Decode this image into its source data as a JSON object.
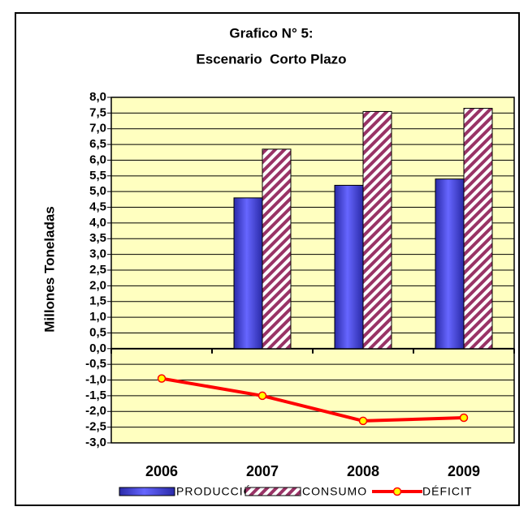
{
  "chart_data": {
    "type": "bar",
    "title": "Grafico N° 5:",
    "subtitle": "Escenario  Corto Plazo",
    "y_label": "Millones Toneladas",
    "categories": [
      "2006",
      "2007",
      "2008",
      "2009"
    ],
    "series": [
      {
        "name": "PRODUCCIÓN",
        "type": "bar",
        "color": "#6666ff",
        "values": [
          null,
          4.8,
          5.2,
          5.4
        ]
      },
      {
        "name": "CONSUMO",
        "type": "bar",
        "color": "#993366",
        "values": [
          null,
          6.35,
          7.55,
          7.65
        ]
      },
      {
        "name": "DÉFICIT",
        "type": "line",
        "color": "#ff0000",
        "marker_color": "#ffff00",
        "values": [
          -0.95,
          -1.5,
          -2.3,
          -2.2
        ]
      }
    ],
    "ylim": [
      -3,
      8
    ],
    "yticks": [
      {
        "value": -3,
        "label": "-3,0"
      },
      {
        "value": -2.5,
        "label": "-2,5"
      },
      {
        "value": -2,
        "label": "-2,0"
      },
      {
        "value": -1.5,
        "label": "-1,5"
      },
      {
        "value": -1,
        "label": "-1,0"
      },
      {
        "value": -0.5,
        "label": "-0,5"
      },
      {
        "value": 0,
        "label": "0,0"
      },
      {
        "value": 0.5,
        "label": "0,5"
      },
      {
        "value": 1,
        "label": "1,0"
      },
      {
        "value": 1.5,
        "label": "1,5"
      },
      {
        "value": 2,
        "label": "2,0"
      },
      {
        "value": 2.5,
        "label": "2,5"
      },
      {
        "value": 3,
        "label": "3,0"
      },
      {
        "value": 3.5,
        "label": "3,5"
      },
      {
        "value": 4,
        "label": "4,0"
      },
      {
        "value": 4.5,
        "label": "4,5"
      },
      {
        "value": 5,
        "label": "5,0"
      },
      {
        "value": 5.5,
        "label": "5,5"
      },
      {
        "value": 6,
        "label": "6,0"
      },
      {
        "value": 6.5,
        "label": "6,5"
      },
      {
        "value": 7,
        "label": "7,0"
      },
      {
        "value": 7.5,
        "label": "7,5"
      },
      {
        "value": 8,
        "label": "8,0"
      }
    ],
    "grid": true,
    "plot_background": "#ffffc0",
    "legend": "bottom"
  }
}
